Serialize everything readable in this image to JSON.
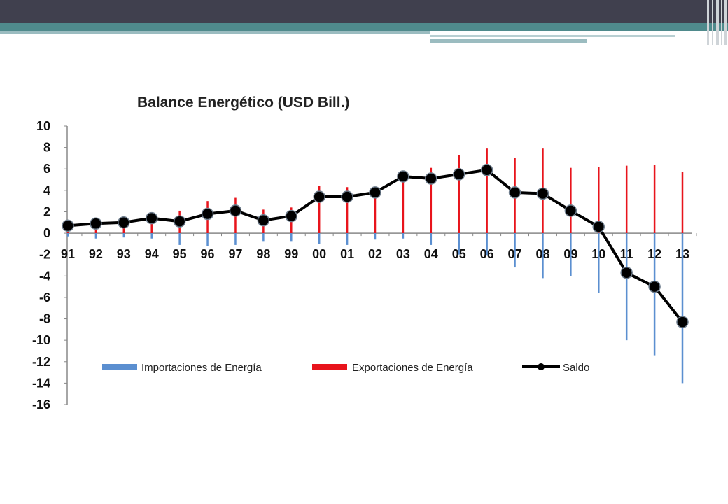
{
  "chart_data": {
    "type": "bar",
    "title": "Balance Energético (USD Bill.)",
    "categories": [
      "91",
      "92",
      "93",
      "94",
      "95",
      "96",
      "97",
      "98",
      "99",
      "00",
      "01",
      "02",
      "03",
      "04",
      "05",
      "06",
      "07",
      "08",
      "09",
      "10",
      "11",
      "12",
      "13"
    ],
    "ylim": [
      -16,
      10
    ],
    "yticks": [
      10,
      8,
      6,
      4,
      2,
      0,
      -2,
      -4,
      -6,
      -8,
      -10,
      -12,
      -14,
      -16
    ],
    "grid": false,
    "legend_position": "bottom",
    "series": [
      {
        "name": "Importaciones de Energía",
        "type": "bar",
        "color": "#5b8fd0",
        "values": [
          -0.3,
          -0.5,
          -0.4,
          -0.5,
          -1.1,
          -1.2,
          -1.1,
          -0.8,
          -0.8,
          -1.0,
          -1.1,
          -0.6,
          -0.5,
          -1.1,
          -2.0,
          -2.1,
          -3.2,
          -4.2,
          -4.0,
          -5.6,
          -10.0,
          -11.4,
          -14.0
        ]
      },
      {
        "name": "Exportaciones de Energía",
        "type": "bar",
        "color": "#e8141c",
        "values": [
          0.7,
          1.0,
          1.1,
          1.6,
          2.1,
          3.0,
          3.3,
          2.2,
          2.4,
          4.4,
          4.3,
          4.0,
          5.6,
          6.1,
          7.3,
          7.9,
          7.0,
          7.9,
          6.1,
          6.2,
          6.3,
          6.4,
          5.7
        ]
      },
      {
        "name": "Saldo",
        "type": "line",
        "color": "#000000",
        "values": [
          0.7,
          0.9,
          1.0,
          1.4,
          1.1,
          1.8,
          2.1,
          1.2,
          1.6,
          3.4,
          3.4,
          3.8,
          5.3,
          5.1,
          5.5,
          5.9,
          3.8,
          3.7,
          2.1,
          0.6,
          -3.7,
          -5.0,
          -8.3
        ]
      }
    ]
  }
}
